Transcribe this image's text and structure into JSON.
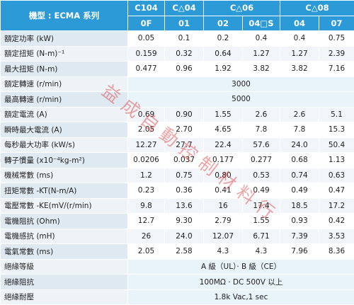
{
  "header": {
    "title": "機型 : ECMA 系列",
    "groups": [
      "C104",
      "C△04",
      "C△06",
      "C△08"
    ],
    "models": [
      "0F",
      "01",
      "02",
      "04□S",
      "04",
      "07"
    ]
  },
  "rows": [
    {
      "label": "額定功率 (kW)",
      "values": [
        "0.05",
        "0.1",
        "0.2",
        "0.4",
        "0.4",
        "0.75"
      ]
    },
    {
      "label": "額定扭矩 (N-m)⁻¹",
      "values": [
        "0.159",
        "0.32",
        "0.64",
        "1.27",
        "1.27",
        "2.39"
      ]
    },
    {
      "label": "最大扭矩 (N-m)",
      "values": [
        "0.477",
        "0.96",
        "1.92",
        "3.82",
        "3.82",
        "7.16"
      ]
    },
    {
      "label": "額定轉速 (r/min)",
      "values": [
        "3000"
      ]
    },
    {
      "label": "最高轉速 (r/min)",
      "values": [
        "5000"
      ]
    },
    {
      "label": "額定電流 (A)",
      "values": [
        "0.69",
        "0.90",
        "1.55",
        "2.6",
        "2.6",
        "5.1"
      ]
    },
    {
      "label": "瞬時最大電流 (A)",
      "values": [
        "2.05",
        "2.70",
        "4.65",
        "7.8",
        "7.8",
        "15.3"
      ]
    },
    {
      "label": "每秒最大功率 (kW/s)",
      "values": [
        "12.27",
        "27.7",
        "22.4",
        "57.6",
        "24.0",
        "50.4"
      ]
    },
    {
      "label": "轉子慣量 (x10⁻⁴kg-m²)",
      "values": [
        "0.0206",
        "0.037",
        "0.177",
        "0.277",
        "0.68",
        "1.13"
      ]
    },
    {
      "label": "機械常數 (ms)",
      "values": [
        "1.2",
        "0.75",
        "0.80",
        "0.53",
        "0.74",
        "0.63"
      ]
    },
    {
      "label": "扭矩常數 -KT(N-m/A)",
      "values": [
        "0.23",
        "0.36",
        "0.41",
        "0.49",
        "0.49",
        "0.47"
      ]
    },
    {
      "label": "電壓常數 -KE(mV/(r/min)",
      "values": [
        "9.8",
        "13.6",
        "16",
        "17.4",
        "18.5",
        "17.2"
      ]
    },
    {
      "label": "電機阻抗 (Ohm)",
      "values": [
        "12.7",
        "9.30",
        "2.79",
        "1.55",
        "0.93",
        "0.42"
      ]
    },
    {
      "label": "電機感抗 (mH)",
      "values": [
        "26",
        "24.0",
        "12.07",
        "6.71",
        "7.39",
        "3.53"
      ]
    },
    {
      "label": "電氣常數 (ms)",
      "values": [
        "2.05",
        "2.58",
        "4.3",
        "4.3",
        "7.96",
        "8.36"
      ]
    },
    {
      "label": "絕緣等級",
      "values": [
        "A 級（UL）· B 級（CE）"
      ]
    },
    {
      "label": "絕緣阻抗",
      "values": [
        "100MΩ · DC 500V 以上"
      ]
    },
    {
      "label": "絕緣耐壓",
      "values": [
        "1.8k Vac,1 sec"
      ]
    }
  ],
  "watermark": "益成自動控制材料行"
}
